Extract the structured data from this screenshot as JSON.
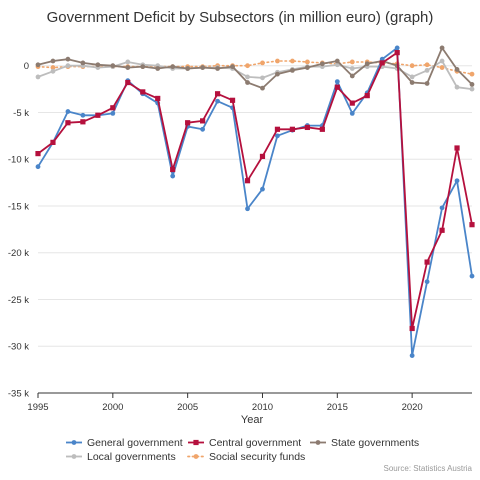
{
  "chart_data": {
    "type": "line",
    "title": "Government Deficit by Subsectors (in million euro) (graph)",
    "xlabel": "Year",
    "ylabel": "",
    "source": "Source: Statistics Austria",
    "xlim": [
      1995,
      2024
    ],
    "ylim": [
      -35000,
      2000
    ],
    "x_ticks": [
      1995,
      2000,
      2005,
      2010,
      2015,
      2020
    ],
    "x_tick_labels": [
      "1995",
      "2000",
      "2005",
      "2010",
      "2015",
      "2020"
    ],
    "y_ticks": [
      0,
      -5000,
      -10000,
      -15000,
      -20000,
      -25000,
      -30000,
      -35000
    ],
    "y_tick_labels": [
      "0",
      "-5 k",
      "-10 k",
      "-15 k",
      "-20 k",
      "-25 k",
      "-30 k",
      "-35 k"
    ],
    "grid": "horizontal",
    "legend_position": "bottom",
    "x": [
      1995,
      1996,
      1997,
      1998,
      1999,
      2000,
      2001,
      2002,
      2003,
      2004,
      2005,
      2006,
      2007,
      2008,
      2009,
      2010,
      2011,
      2012,
      2013,
      2014,
      2015,
      2016,
      2017,
      2018,
      2019,
      2020,
      2021,
      2022,
      2023,
      2024
    ],
    "series": [
      {
        "name": "General government",
        "color": "#4a85c9",
        "marker": "circle",
        "dash": "solid",
        "values": [
          -10800,
          -8200,
          -4900,
          -5300,
          -5300,
          -5100,
          -1600,
          -3000,
          -4000,
          -11800,
          -6500,
          -6800,
          -3800,
          -4500,
          -15300,
          -13200,
          -7500,
          -6900,
          -6400,
          -6400,
          -1700,
          -5100,
          -2900,
          700,
          1900,
          -31000,
          -23100,
          -15200,
          -12300,
          -22500
        ]
      },
      {
        "name": "Central government",
        "color": "#b5103d",
        "marker": "square",
        "dash": "solid",
        "values": [
          -9400,
          -8200,
          -6100,
          -6000,
          -5300,
          -4500,
          -1800,
          -2800,
          -3500,
          -11100,
          -6100,
          -5900,
          -3000,
          -3700,
          -12300,
          -9700,
          -6800,
          -6800,
          -6600,
          -6800,
          -2300,
          -4000,
          -3200,
          300,
          1400,
          -28100,
          -21000,
          -17600,
          -8800,
          -17000
        ]
      },
      {
        "name": "State governments",
        "color": "#8c7b70",
        "marker": "circle",
        "dash": "solid",
        "values": [
          100,
          500,
          700,
          300,
          100,
          0,
          -200,
          -100,
          -300,
          -100,
          -300,
          -200,
          -300,
          -100,
          -1800,
          -2400,
          -900,
          -500,
          -200,
          200,
          500,
          -1100,
          200,
          500,
          0,
          -1800,
          -1900,
          1900,
          -400,
          -2000
        ]
      },
      {
        "name": "Local governments",
        "color": "#bdbdbd",
        "marker": "circle",
        "dash": "solid",
        "values": [
          -1200,
          -600,
          0,
          0,
          -200,
          -100,
          400,
          100,
          0,
          -300,
          -300,
          -200,
          -200,
          -300,
          -1200,
          -1300,
          -700,
          -400,
          -100,
          -100,
          100,
          -300,
          -100,
          -100,
          -300,
          -1200,
          -500,
          500,
          -2300,
          -2500
        ]
      },
      {
        "name": "Social security funds",
        "color": "#f0a56b",
        "marker": "circle",
        "dash": "dotted",
        "values": [
          -100,
          -200,
          -100,
          -100,
          -100,
          -100,
          -100,
          -100,
          -100,
          -100,
          -100,
          -100,
          0,
          0,
          0,
          300,
          500,
          500,
          400,
          300,
          200,
          400,
          400,
          300,
          200,
          0,
          100,
          -200,
          -600,
          -900
        ]
      }
    ]
  }
}
